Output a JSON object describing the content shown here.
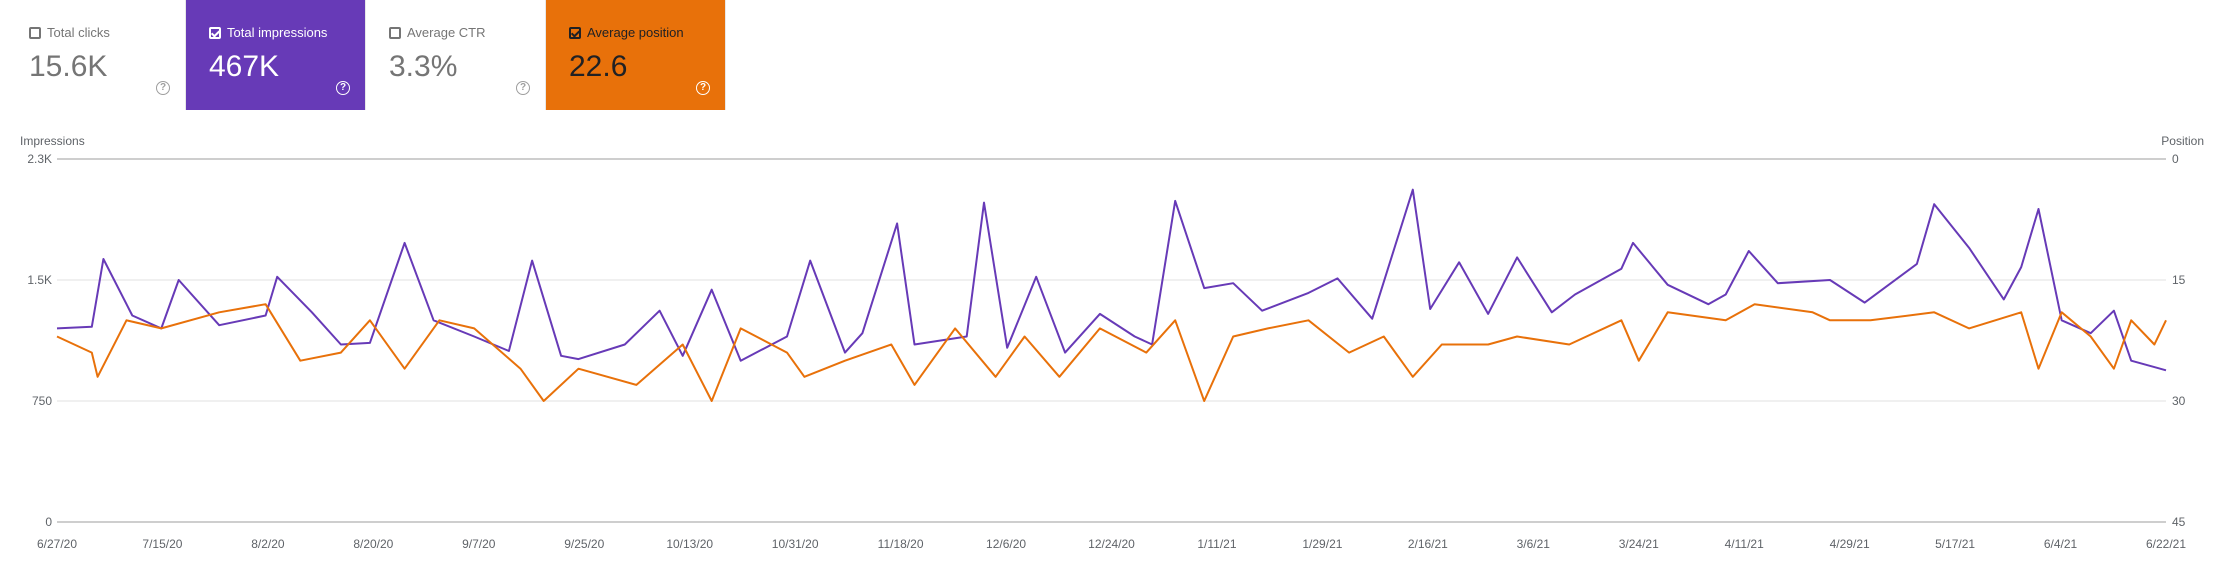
{
  "cards": [
    {
      "label": "Total clicks",
      "value": "15.6K",
      "checked": false
    },
    {
      "label": "Total impressions",
      "value": "467K",
      "checked": true
    },
    {
      "label": "Average CTR",
      "value": "3.3%",
      "checked": false
    },
    {
      "label": "Average position",
      "value": "22.6",
      "checked": true
    }
  ],
  "colors": {
    "impressions": "#673ab7",
    "position": "#e8710a",
    "grid": "#e0e0e0",
    "text": "#5f6368"
  },
  "chart_data": {
    "type": "line",
    "ylabel_left": "Impressions",
    "ylabel_right": "Position",
    "y_left_ticks": [
      "0",
      "750",
      "1.5K",
      "2.3K"
    ],
    "y_left_range": [
      0,
      2250
    ],
    "y_right_ticks": [
      "45",
      "30",
      "15",
      "0"
    ],
    "y_right_range": [
      45,
      0
    ],
    "x_range": [
      "2020-06-27",
      "2021-06-26"
    ],
    "x_ticks": [
      "6/27/20",
      "7/15/20",
      "8/2/20",
      "8/20/20",
      "9/7/20",
      "9/25/20",
      "10/13/20",
      "10/31/20",
      "11/18/20",
      "12/6/20",
      "12/24/20",
      "1/11/21",
      "1/29/21",
      "2/16/21",
      "3/6/21",
      "3/24/21",
      "4/11/21",
      "4/29/21",
      "5/17/21",
      "6/4/21",
      "6/22/21"
    ],
    "legend": "none",
    "grid": true,
    "series": [
      {
        "name": "Impressions",
        "axis": "left",
        "points": [
          [
            "2020-06-27",
            1200
          ],
          [
            "2020-07-03",
            1210
          ],
          [
            "2020-07-05",
            1630
          ],
          [
            "2020-07-10",
            1280
          ],
          [
            "2020-07-15",
            1200
          ],
          [
            "2020-07-18",
            1500
          ],
          [
            "2020-07-25",
            1220
          ],
          [
            "2020-08-02",
            1280
          ],
          [
            "2020-08-04",
            1520
          ],
          [
            "2020-08-10",
            1300
          ],
          [
            "2020-08-15",
            1100
          ],
          [
            "2020-08-20",
            1110
          ],
          [
            "2020-08-26",
            1730
          ],
          [
            "2020-08-31",
            1250
          ],
          [
            "2020-09-07",
            1150
          ],
          [
            "2020-09-13",
            1060
          ],
          [
            "2020-09-17",
            1620
          ],
          [
            "2020-09-22",
            1030
          ],
          [
            "2020-09-25",
            1010
          ],
          [
            "2020-10-03",
            1100
          ],
          [
            "2020-10-09",
            1310
          ],
          [
            "2020-10-13",
            1030
          ],
          [
            "2020-10-18",
            1440
          ],
          [
            "2020-10-23",
            1000
          ],
          [
            "2020-10-31",
            1150
          ],
          [
            "2020-11-04",
            1620
          ],
          [
            "2020-11-10",
            1050
          ],
          [
            "2020-11-13",
            1170
          ],
          [
            "2020-11-19",
            1850
          ],
          [
            "2020-11-22",
            1100
          ],
          [
            "2020-12-01",
            1150
          ],
          [
            "2020-12-04",
            1980
          ],
          [
            "2020-12-08",
            1080
          ],
          [
            "2020-12-13",
            1520
          ],
          [
            "2020-12-18",
            1050
          ],
          [
            "2020-12-24",
            1290
          ],
          [
            "2020-12-30",
            1150
          ],
          [
            "2021-01-02",
            1100
          ],
          [
            "2021-01-06",
            1990
          ],
          [
            "2021-01-11",
            1450
          ],
          [
            "2021-01-16",
            1480
          ],
          [
            "2021-01-21",
            1310
          ],
          [
            "2021-01-29",
            1420
          ],
          [
            "2021-02-03",
            1510
          ],
          [
            "2021-02-09",
            1260
          ],
          [
            "2021-02-16",
            2060
          ],
          [
            "2021-02-19",
            1320
          ],
          [
            "2021-02-24",
            1610
          ],
          [
            "2021-03-01",
            1290
          ],
          [
            "2021-03-06",
            1640
          ],
          [
            "2021-03-12",
            1300
          ],
          [
            "2021-03-16",
            1410
          ],
          [
            "2021-03-24",
            1570
          ],
          [
            "2021-03-26",
            1730
          ],
          [
            "2021-04-01",
            1470
          ],
          [
            "2021-04-08",
            1350
          ],
          [
            "2021-04-11",
            1410
          ],
          [
            "2021-04-15",
            1680
          ],
          [
            "2021-04-20",
            1480
          ],
          [
            "2021-04-29",
            1500
          ],
          [
            "2021-05-05",
            1360
          ],
          [
            "2021-05-14",
            1600
          ],
          [
            "2021-05-17",
            1970
          ],
          [
            "2021-05-23",
            1700
          ],
          [
            "2021-05-29",
            1380
          ],
          [
            "2021-06-01",
            1580
          ],
          [
            "2021-06-04",
            1940
          ],
          [
            "2021-06-08",
            1250
          ],
          [
            "2021-06-13",
            1170
          ],
          [
            "2021-06-17",
            1310
          ],
          [
            "2021-06-20",
            1000
          ],
          [
            "2021-06-26",
            940
          ]
        ]
      },
      {
        "name": "Average position",
        "axis": "right",
        "points": [
          [
            "2020-06-27",
            22
          ],
          [
            "2020-07-03",
            24
          ],
          [
            "2020-07-04",
            27
          ],
          [
            "2020-07-09",
            20
          ],
          [
            "2020-07-15",
            21
          ],
          [
            "2020-07-25",
            19
          ],
          [
            "2020-08-02",
            18
          ],
          [
            "2020-08-08",
            25
          ],
          [
            "2020-08-15",
            24
          ],
          [
            "2020-08-20",
            20
          ],
          [
            "2020-08-26",
            26
          ],
          [
            "2020-09-01",
            20
          ],
          [
            "2020-09-07",
            21
          ],
          [
            "2020-09-15",
            26
          ],
          [
            "2020-09-19",
            30
          ],
          [
            "2020-09-25",
            26
          ],
          [
            "2020-10-05",
            28
          ],
          [
            "2020-10-13",
            23
          ],
          [
            "2020-10-18",
            30
          ],
          [
            "2020-10-23",
            21
          ],
          [
            "2020-10-31",
            24
          ],
          [
            "2020-11-03",
            27
          ],
          [
            "2020-11-10",
            25
          ],
          [
            "2020-11-18",
            23
          ],
          [
            "2020-11-22",
            28
          ],
          [
            "2020-11-29",
            21
          ],
          [
            "2020-12-06",
            27
          ],
          [
            "2020-12-11",
            22
          ],
          [
            "2020-12-17",
            27
          ],
          [
            "2020-12-24",
            21
          ],
          [
            "2021-01-01",
            24
          ],
          [
            "2021-01-06",
            20
          ],
          [
            "2021-01-11",
            30
          ],
          [
            "2021-01-16",
            22
          ],
          [
            "2021-01-22",
            21
          ],
          [
            "2021-01-29",
            20
          ],
          [
            "2021-02-05",
            24
          ],
          [
            "2021-02-11",
            22
          ],
          [
            "2021-02-16",
            27
          ],
          [
            "2021-02-21",
            23
          ],
          [
            "2021-03-01",
            23
          ],
          [
            "2021-03-06",
            22
          ],
          [
            "2021-03-15",
            23
          ],
          [
            "2021-03-24",
            20
          ],
          [
            "2021-03-27",
            25
          ],
          [
            "2021-04-01",
            19
          ],
          [
            "2021-04-11",
            20
          ],
          [
            "2021-04-16",
            18
          ],
          [
            "2021-04-26",
            19
          ],
          [
            "2021-04-29",
            20
          ],
          [
            "2021-05-06",
            20
          ],
          [
            "2021-05-17",
            19
          ],
          [
            "2021-05-23",
            21
          ],
          [
            "2021-06-01",
            19
          ],
          [
            "2021-06-04",
            26
          ],
          [
            "2021-06-08",
            19
          ],
          [
            "2021-06-13",
            22
          ],
          [
            "2021-06-17",
            26
          ],
          [
            "2021-06-20",
            20
          ],
          [
            "2021-06-24",
            23
          ],
          [
            "2021-06-26",
            20
          ]
        ]
      }
    ]
  }
}
